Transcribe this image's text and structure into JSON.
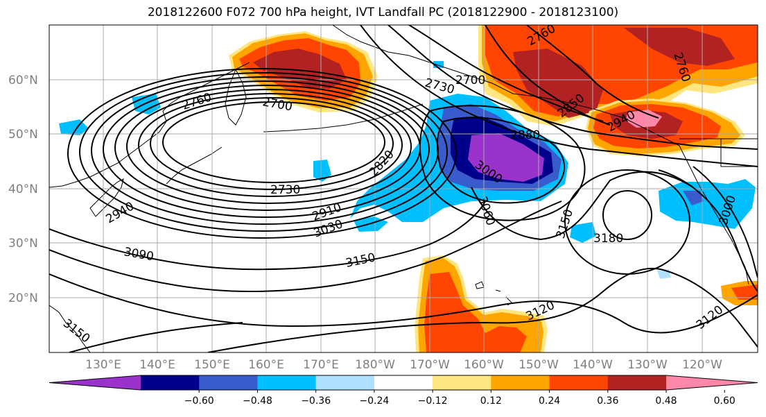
{
  "title": "2018122600 F072 700 hPa height, IVT Landfall PC (2018122900 - 2018123100)",
  "longitude_labels": [
    "130°E",
    "140°E",
    "150°E",
    "160°E",
    "170°E",
    "180°W",
    "170°W",
    "160°W",
    "150°W",
    "140°W",
    "130°W",
    "120°W"
  ],
  "latitude_labels": [
    "60°N",
    "50°N",
    "40°N",
    "30°N",
    "20°N"
  ],
  "contour_labels": [
    "2760",
    "2700",
    "2730",
    "2910",
    "3030",
    "2820",
    "2940",
    "3090",
    "3150",
    "2730",
    "2700",
    "2760",
    "2880",
    "3000",
    "3060",
    "2850",
    "2940",
    "3150",
    "3180",
    "3120",
    "3000",
    "2760",
    "3120",
    "3150"
  ],
  "colorbar": {
    "ticks": [
      "−0.60",
      "−0.48",
      "−0.36",
      "−0.24",
      "−0.12",
      "0.12",
      "0.24",
      "0.36",
      "0.48",
      "0.60"
    ],
    "colors": [
      "#9933cc",
      "#00008b",
      "#3a5bcc",
      "#00bfff",
      "#b0e0ff",
      "#ffffff",
      "#ffe680",
      "#ffa500",
      "#ff4500",
      "#b22222",
      "#ff88aa"
    ]
  },
  "palette": {
    "purple": "#9933cc",
    "navy": "#00008b",
    "blue": "#3a5bcc",
    "cyan": "#00bfff",
    "lightblue": "#b0e0ff",
    "yellow": "#ffe680",
    "orange": "#ffa500",
    "redorange": "#ff4500",
    "darkred": "#b22222",
    "pink": "#ff88aa"
  }
}
